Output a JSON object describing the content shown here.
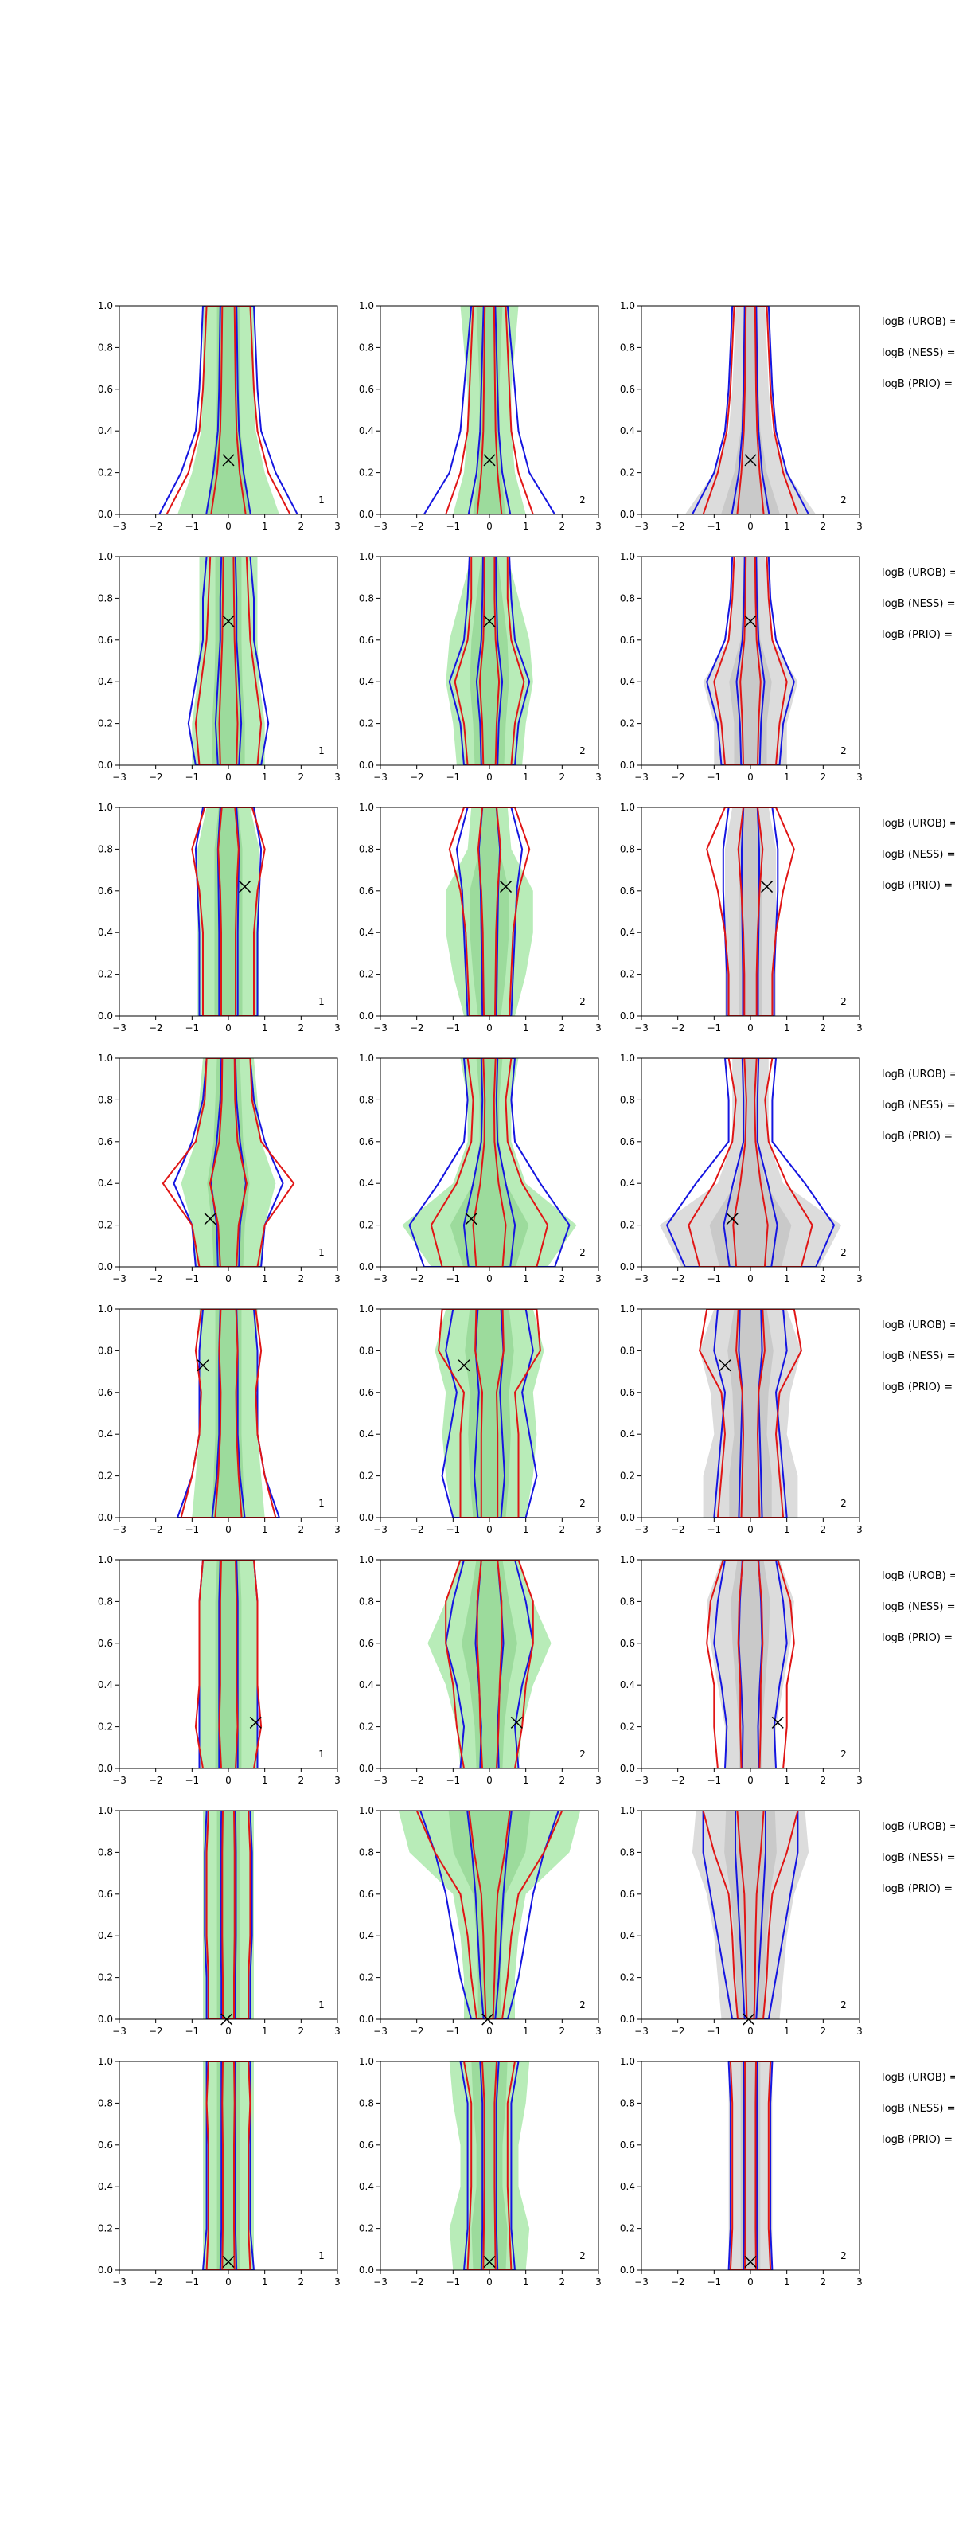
{
  "figure": {
    "background": "#ffffff"
  },
  "colors": {
    "blue": "#1515e0",
    "red": "#e01515",
    "green_fill": "#b8ecb8",
    "green_fill_dark": "#95d795",
    "grey_fill": "#dcdcdc",
    "grey_fill_dark": "#c4c4c4",
    "axis": "#000000"
  },
  "chart_data": {
    "type": "contour",
    "xlim": [
      -3,
      3
    ],
    "ylim": [
      0,
      1
    ],
    "x_ticks": [
      "−3",
      "−2",
      "−1",
      "0",
      "1",
      "2",
      "3"
    ],
    "y_ticks": [
      "0.0",
      "0.2",
      "0.4",
      "0.6",
      "0.8",
      "1.0"
    ],
    "column_panel_labels": [
      "1",
      "2",
      "2"
    ],
    "column_fill_colors": [
      "green",
      "green",
      "grey"
    ],
    "row_text_lines": [
      "logB (UROB) =",
      "logB (NESS) =",
      "logB (PRIO) ="
    ],
    "rows": [
      {
        "marker": [
          0.0,
          0.26
        ],
        "width_profile": [
          1.0,
          1.0,
          0.8,
          0.65,
          0.55,
          0.5
        ],
        "cols": [
          {
            "blue": [
              1.9,
              1.3,
              0.9,
              0.8,
              0.75,
              0.7
            ],
            "red": [
              1.7,
              1.1,
              0.8,
              0.7,
              0.65,
              0.6
            ],
            "fill": [
              1.4,
              1.0,
              0.75,
              0.7,
              0.7,
              0.7
            ]
          },
          {
            "blue": [
              1.8,
              1.1,
              0.8,
              0.7,
              0.6,
              0.5
            ],
            "red": [
              1.2,
              0.8,
              0.6,
              0.55,
              0.5,
              0.45
            ],
            "fill": [
              1.0,
              0.7,
              0.6,
              0.6,
              0.7,
              0.8
            ]
          },
          {
            "blue": [
              1.6,
              1.0,
              0.7,
              0.6,
              0.55,
              0.5
            ],
            "red": [
              1.3,
              0.9,
              0.65,
              0.55,
              0.5,
              0.45
            ],
            "fill": [
              1.8,
              1.0,
              0.6,
              0.5,
              0.45,
              0.4
            ]
          }
        ]
      },
      {
        "marker": [
          0.0,
          0.69
        ],
        "cols": [
          {
            "blue": [
              0.9,
              1.1,
              0.9,
              0.7,
              0.7,
              0.6
            ],
            "red": [
              0.8,
              0.9,
              0.75,
              0.6,
              0.55,
              0.5
            ],
            "fill": [
              1.0,
              1.0,
              0.85,
              0.8,
              0.8,
              0.8
            ]
          },
          {
            "blue": [
              0.7,
              0.8,
              1.1,
              0.7,
              0.6,
              0.55
            ],
            "red": [
              0.6,
              0.7,
              0.95,
              0.6,
              0.5,
              0.5
            ],
            "fill": [
              0.9,
              1.0,
              1.2,
              1.1,
              0.8,
              0.5
            ]
          },
          {
            "blue": [
              0.8,
              0.9,
              1.2,
              0.7,
              0.55,
              0.5
            ],
            "red": [
              0.7,
              0.8,
              1.0,
              0.6,
              0.5,
              0.45
            ],
            "fill": [
              1.0,
              1.0,
              1.3,
              0.6,
              0.5,
              0.4
            ]
          }
        ]
      },
      {
        "marker": [
          0.45,
          0.62
        ],
        "cols": [
          {
            "blue": [
              0.8,
              0.8,
              0.8,
              0.85,
              0.9,
              0.7
            ],
            "red": [
              0.7,
              0.7,
              0.7,
              0.8,
              1.0,
              0.65
            ],
            "fill": [
              0.85,
              0.85,
              0.85,
              0.85,
              0.85,
              0.6
            ]
          },
          {
            "blue": [
              0.6,
              0.65,
              0.7,
              0.75,
              0.9,
              0.6
            ],
            "red": [
              0.55,
              0.6,
              0.65,
              0.8,
              1.1,
              0.7
            ],
            "fill": [
              0.7,
              1.0,
              1.2,
              1.2,
              0.6,
              0.5
            ]
          },
          {
            "blue": [
              0.65,
              0.65,
              0.7,
              0.75,
              0.75,
              0.6
            ],
            "red": [
              0.6,
              0.6,
              0.7,
              0.9,
              1.2,
              0.7
            ],
            "fill": [
              0.7,
              0.7,
              0.7,
              0.7,
              0.7,
              0.5
            ]
          }
        ]
      },
      {
        "marker": [
          -0.5,
          0.23
        ],
        "cols": [
          {
            "blue": [
              0.9,
              1.0,
              1.5,
              1.0,
              0.7,
              0.6
            ],
            "red": [
              0.8,
              1.0,
              1.8,
              0.9,
              0.65,
              0.6
            ],
            "fill": [
              0.9,
              1.0,
              1.3,
              0.9,
              0.8,
              0.7
            ]
          },
          {
            "blue": [
              1.8,
              2.2,
              1.4,
              0.7,
              0.6,
              0.7
            ],
            "red": [
              1.3,
              1.6,
              0.9,
              0.5,
              0.45,
              0.6
            ],
            "fill": [
              1.6,
              2.4,
              1.0,
              0.6,
              0.6,
              0.8
            ]
          },
          {
            "blue": [
              1.8,
              2.3,
              1.5,
              0.6,
              0.6,
              0.7
            ],
            "red": [
              1.4,
              1.7,
              1.0,
              0.5,
              0.4,
              0.6
            ],
            "fill": [
              1.9,
              2.5,
              0.9,
              0.5,
              0.5,
              0.5
            ]
          }
        ]
      },
      {
        "marker": [
          -0.7,
          0.73
        ],
        "cols": [
          {
            "blue": [
              1.4,
              1.0,
              0.8,
              0.8,
              0.8,
              0.7
            ],
            "red": [
              1.3,
              1.0,
              0.8,
              0.75,
              0.9,
              0.75
            ],
            "fill": [
              1.0,
              0.9,
              0.8,
              0.8,
              0.8,
              0.8
            ]
          },
          {
            "blue": [
              1.0,
              1.3,
              1.1,
              0.9,
              1.2,
              1.0
            ],
            "red": [
              0.8,
              0.8,
              0.8,
              0.7,
              1.4,
              1.3
            ],
            "fill": [
              1.0,
              1.2,
              1.3,
              1.2,
              1.5,
              1.2
            ]
          },
          {
            "blue": [
              1.0,
              0.9,
              0.8,
              0.7,
              1.0,
              0.9
            ],
            "red": [
              0.9,
              0.8,
              0.7,
              0.8,
              1.4,
              1.2
            ],
            "fill": [
              1.3,
              1.3,
              1.0,
              1.1,
              1.4,
              1.0
            ]
          }
        ]
      },
      {
        "marker": [
          0.75,
          0.22
        ],
        "cols": [
          {
            "blue": [
              0.8,
              0.8,
              0.8,
              0.8,
              0.8,
              0.7
            ],
            "red": [
              0.7,
              0.9,
              0.8,
              0.8,
              0.8,
              0.7
            ],
            "fill": [
              0.8,
              0.8,
              0.8,
              0.8,
              0.8,
              0.7
            ]
          },
          {
            "blue": [
              0.8,
              0.7,
              0.9,
              1.2,
              1.0,
              0.7
            ],
            "red": [
              0.7,
              0.9,
              1.0,
              1.2,
              1.2,
              0.8
            ],
            "fill": [
              0.8,
              0.9,
              1.2,
              1.7,
              1.2,
              0.8
            ]
          },
          {
            "blue": [
              0.7,
              0.65,
              0.8,
              1.0,
              0.9,
              0.7
            ],
            "red": [
              0.9,
              1.0,
              1.0,
              1.2,
              1.1,
              0.75
            ],
            "fill": [
              0.7,
              0.7,
              0.9,
              1.1,
              1.2,
              0.8
            ]
          }
        ]
      },
      {
        "marker": [
          -0.05,
          0.0
        ],
        "cols": [
          {
            "blue": [
              0.6,
              0.6,
              0.65,
              0.65,
              0.65,
              0.6
            ],
            "red": [
              0.55,
              0.55,
              0.6,
              0.6,
              0.6,
              0.55
            ],
            "fill": [
              0.7,
              0.7,
              0.7,
              0.7,
              0.7,
              0.7
            ]
          },
          {
            "blue": [
              0.5,
              0.8,
              1.0,
              1.2,
              1.5,
              1.9
            ],
            "red": [
              0.35,
              0.5,
              0.6,
              0.8,
              1.5,
              2.0
            ],
            "fill": [
              0.7,
              0.7,
              0.8,
              1.0,
              2.2,
              2.5
            ]
          },
          {
            "blue": [
              0.5,
              0.7,
              0.9,
              1.1,
              1.3,
              1.3
            ],
            "red": [
              0.35,
              0.45,
              0.5,
              0.6,
              1.0,
              1.3
            ],
            "fill": [
              0.8,
              0.9,
              1.0,
              1.2,
              1.6,
              1.5
            ]
          }
        ]
      },
      {
        "marker": [
          0.0,
          0.04
        ],
        "cols": [
          {
            "blue": [
              0.7,
              0.6,
              0.6,
              0.6,
              0.6,
              0.6
            ],
            "red": [
              0.6,
              0.55,
              0.55,
              0.55,
              0.6,
              0.55
            ],
            "fill": [
              0.7,
              0.7,
              0.7,
              0.7,
              0.7,
              0.7
            ]
          },
          {
            "blue": [
              0.7,
              0.6,
              0.6,
              0.6,
              0.6,
              0.8
            ],
            "red": [
              0.6,
              0.55,
              0.5,
              0.5,
              0.5,
              0.7
            ],
            "fill": [
              1.0,
              1.1,
              0.8,
              0.8,
              1.0,
              1.1
            ]
          },
          {
            "blue": [
              0.6,
              0.55,
              0.55,
              0.55,
              0.55,
              0.6
            ],
            "red": [
              0.55,
              0.5,
              0.5,
              0.5,
              0.5,
              0.55
            ],
            "fill": [
              0.6,
              0.6,
              0.6,
              0.6,
              0.6,
              0.6
            ]
          }
        ]
      }
    ]
  }
}
